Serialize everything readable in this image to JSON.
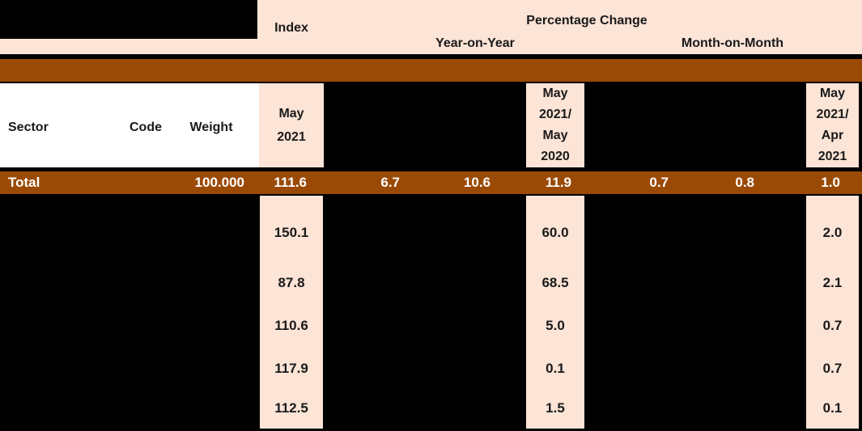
{
  "header": {
    "index": "Index",
    "percentage_change": "Percentage Change",
    "year_on_year": "Year-on-Year",
    "month_on_month": "Month-on-Month"
  },
  "column_headers": {
    "sector": "Sector",
    "code": "Code",
    "weight": "Weight",
    "index_period": [
      "May",
      "2021"
    ],
    "yoy_period": [
      "May",
      "2021/",
      "May",
      "2020"
    ],
    "mom_period": [
      "May",
      "2021/",
      "Apr",
      "2021"
    ]
  },
  "total_row": {
    "sector": "Total",
    "weight": "100.000",
    "index": "111.6",
    "yoy_values": [
      "6.7",
      "10.6",
      "11.9"
    ],
    "mom_values": [
      "0.7",
      "0.8",
      "1.0"
    ]
  },
  "body_rows": [
    {
      "index": "150.1",
      "yoy": "60.0",
      "mom": "2.0"
    },
    {
      "index": "87.8",
      "yoy": "68.5",
      "mom": "2.1"
    },
    {
      "index": "110.6",
      "yoy": "5.0",
      "mom": "0.7"
    },
    {
      "index": "117.9",
      "yoy": "0.1",
      "mom": "0.7"
    },
    {
      "index": "112.5",
      "yoy": "1.5",
      "mom": "0.1"
    }
  ],
  "colors": {
    "accent_brown": "#9B4A06",
    "peach": "#FCE4D6",
    "background_black": "#000000",
    "total_row_text": "#FFFFFF"
  }
}
